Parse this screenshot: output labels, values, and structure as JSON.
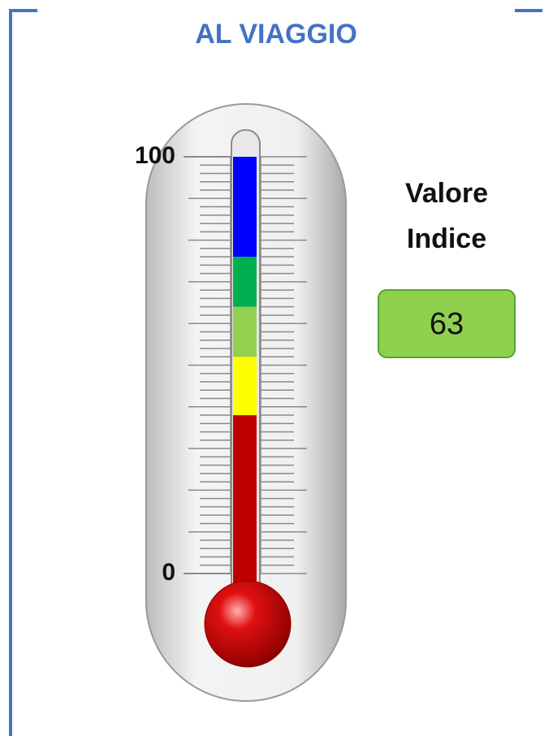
{
  "chart_data": {
    "type": "thermometer",
    "title": "AL VIAGGIO",
    "ylim": [
      0,
      100
    ],
    "yticks": [
      0,
      100
    ],
    "series": [
      {
        "color": "#c00000",
        "values": [
          38
        ]
      },
      {
        "color": "#ffff00",
        "values": [
          14
        ]
      },
      {
        "color": "#92d050",
        "values": [
          12
        ]
      },
      {
        "color": "#00b050",
        "values": [
          12
        ]
      },
      {
        "color": "#0000ff",
        "values": [
          24
        ]
      }
    ],
    "indicator": {
      "label": "Valore Indice",
      "value": 63
    }
  }
}
